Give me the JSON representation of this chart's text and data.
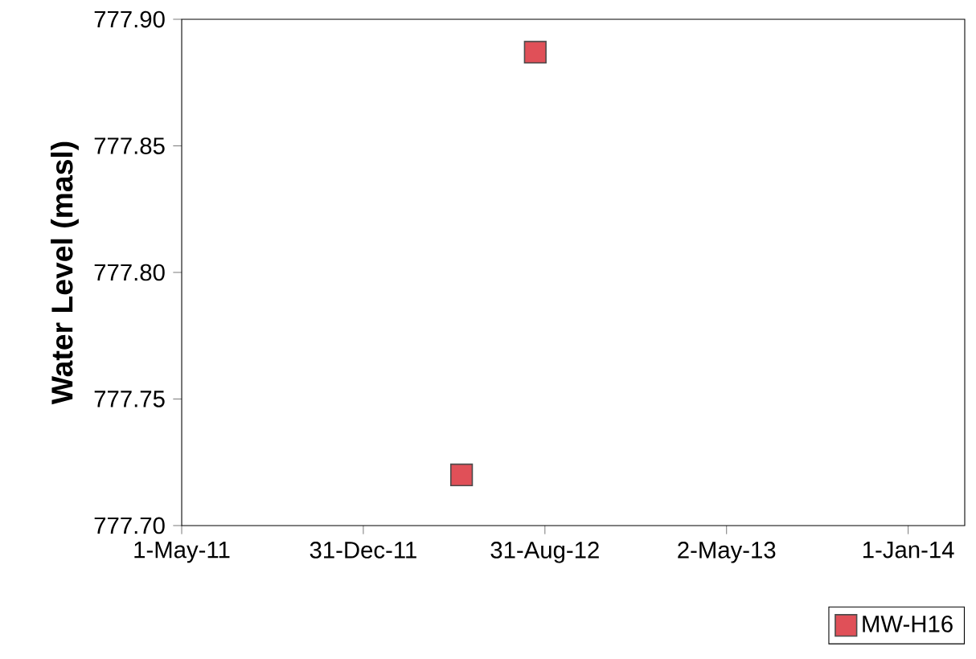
{
  "chart_data": {
    "type": "scatter",
    "ylabel": "Water Level (masl)",
    "xlim": [
      "2011-05-01",
      "2014-03-18"
    ],
    "xticks": [
      {
        "value": "2011-05-01",
        "label": "1-May-11"
      },
      {
        "value": "2011-12-31",
        "label": "31-Dec-11"
      },
      {
        "value": "2012-08-31",
        "label": "31-Aug-12"
      },
      {
        "value": "2013-05-02",
        "label": "2-May-13"
      },
      {
        "value": "2014-01-01",
        "label": "1-Jan-14"
      }
    ],
    "ylim": [
      777.7,
      777.9
    ],
    "yticks": [
      {
        "value": 777.7,
        "label": "777.70"
      },
      {
        "value": 777.75,
        "label": "777.75"
      },
      {
        "value": 777.8,
        "label": "777.80"
      },
      {
        "value": 777.85,
        "label": "777.85"
      },
      {
        "value": 777.9,
        "label": "777.90"
      }
    ],
    "grid": false,
    "legend": "bottom right",
    "marker": "square",
    "series": [
      {
        "name": "MW-H16",
        "color": "#e05058",
        "x": [
          "2012-05-11",
          "2012-08-18"
        ],
        "values": [
          777.72,
          777.887
        ]
      }
    ]
  }
}
